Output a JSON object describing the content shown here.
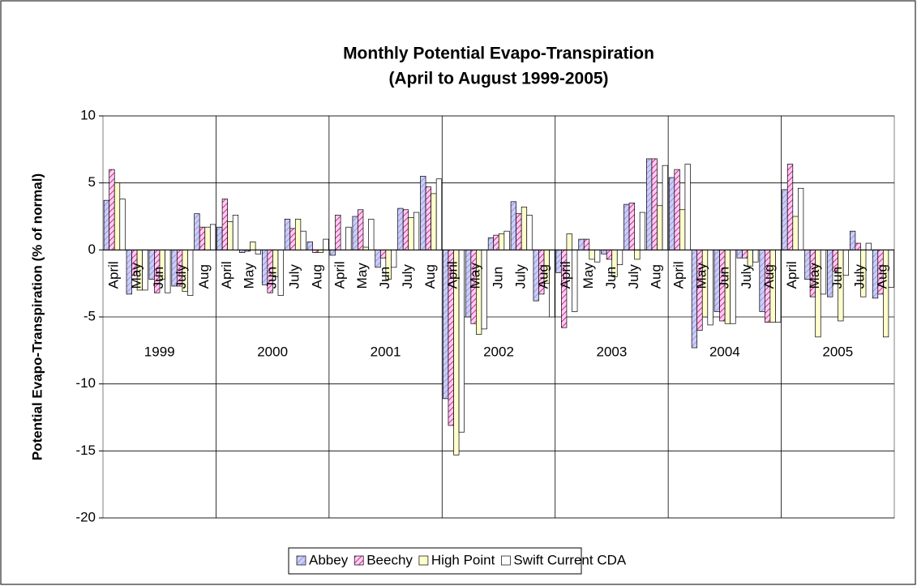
{
  "chart_data": {
    "type": "bar",
    "title": [
      "Monthly Potential Evapo-Transpiration",
      "(April to August 1999-2005)"
    ],
    "y_label": "Potential Evapo-Transpiration (% of normal)",
    "categories": [
      "April",
      "May",
      "Jun",
      "July",
      "Aug",
      "April",
      "May",
      "Jun",
      "July",
      "Aug",
      "April",
      "May",
      "Jun",
      "July",
      "Aug",
      "April",
      "May",
      "Jun",
      "July",
      "Aug",
      "April",
      "May",
      "Jun",
      "July",
      "Aug",
      "April",
      "May",
      "Jun",
      "July",
      "Aug",
      "April",
      "May",
      "Jun",
      "July",
      "Aug"
    ],
    "groups": [
      "1999",
      "2000",
      "2001",
      "2002",
      "2003",
      "2004",
      "2005"
    ],
    "ylim": [
      -20,
      10
    ],
    "yticks": [
      -20,
      -15,
      -10,
      -5,
      0,
      5,
      10
    ],
    "grid": true,
    "legend": "bottom",
    "series": [
      {
        "name": "Abbey",
        "color": "#ccccff",
        "hatch": "#9999cc",
        "values": [
          3.7,
          -3.3,
          -2.2,
          -2.7,
          2.7,
          1.7,
          -0.2,
          -2.6,
          2.3,
          0.6,
          -0.4,
          2.5,
          -1.3,
          3.1,
          5.5,
          -11.1,
          -5.0,
          0.9,
          3.6,
          -3.8,
          -1.7,
          0.8,
          -0.3,
          3.4,
          6.8,
          5.4,
          -7.3,
          -4.6,
          -0.6,
          -4.6,
          4.5,
          -2.2,
          -3.5,
          1.4,
          -3.6
        ]
      },
      {
        "name": "Beechy",
        "color": "#ffccff",
        "hatch": "#cc3366",
        "values": [
          6.0,
          -1.9,
          -3.2,
          -2.7,
          1.7,
          3.8,
          -0.1,
          -3.2,
          1.6,
          -0.2,
          2.6,
          3.0,
          -0.6,
          3.0,
          4.7,
          -13.1,
          -5.5,
          1.1,
          2.7,
          -3.3,
          -5.8,
          0.8,
          -0.7,
          3.5,
          6.8,
          6.0,
          -6.0,
          -5.3,
          -0.6,
          -5.4,
          6.4,
          -3.5,
          -1.6,
          0.5,
          -3.3
        ]
      },
      {
        "name": "High Point",
        "color": "#ffffcc",
        "hatch": null,
        "values": [
          5.0,
          -3.0,
          -2.2,
          -3.1,
          1.7,
          2.1,
          0.6,
          -2.0,
          2.3,
          -0.2,
          0,
          0.2,
          -2.2,
          2.4,
          4.2,
          -15.3,
          -6.3,
          1.2,
          3.2,
          -2.5,
          1.2,
          -0.7,
          -2.0,
          -0.7,
          3.3,
          3.0,
          -5.0,
          -5.5,
          -1.2,
          -5.4,
          2.5,
          -6.5,
          -5.3,
          -3.5,
          -6.5
        ]
      },
      {
        "name": "Swift Current CDA",
        "color": "#ffffff",
        "hatch": null,
        "values": [
          3.8,
          -3.0,
          -3.2,
          -3.4,
          1.9,
          2.6,
          -0.3,
          -3.4,
          1.4,
          0.8,
          1.7,
          2.3,
          -1.3,
          2.8,
          5.3,
          -13.6,
          -5.9,
          1.4,
          2.6,
          -5.0,
          -4.6,
          -0.9,
          -1.1,
          2.8,
          6.3,
          6.4,
          -5.6,
          -5.5,
          -0.9,
          -5.4,
          4.6,
          -3.3,
          -1.9,
          0.5,
          -2.8
        ]
      }
    ]
  }
}
